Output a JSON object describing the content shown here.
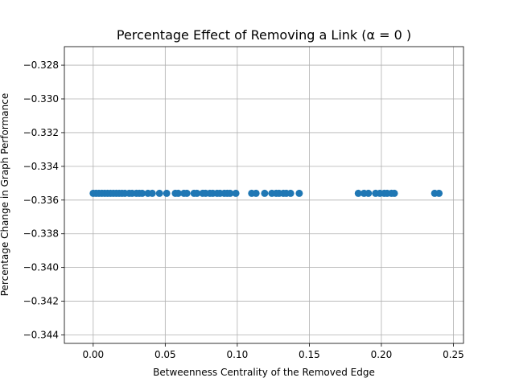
{
  "chart_data": {
    "type": "scatter",
    "title": "Percentage Effect of Removing a Link (α = 0 )",
    "xlabel": "Betweenness Centrality of the Removed Edge",
    "ylabel": "Percentage Change in Graph Performance",
    "xlim": [
      -0.02,
      0.257
    ],
    "ylim": [
      -0.3445,
      -0.3269
    ],
    "xticks": [
      0.0,
      0.05,
      0.1,
      0.15,
      0.2,
      0.25
    ],
    "xtick_labels": [
      "0.00",
      "0.05",
      "0.10",
      "0.15",
      "0.20",
      "0.25"
    ],
    "yticks": [
      -0.328,
      -0.33,
      -0.332,
      -0.334,
      -0.336,
      -0.338,
      -0.34,
      -0.342,
      -0.344
    ],
    "ytick_labels": [
      "−0.328",
      "−0.330",
      "−0.332",
      "−0.334",
      "−0.336",
      "−0.338",
      "−0.340",
      "−0.342",
      "−0.344"
    ],
    "grid": true,
    "marker_color": "#1f77b4",
    "series": [
      {
        "x": [
          0.0,
          0.002,
          0.004,
          0.006,
          0.008,
          0.01,
          0.012,
          0.014,
          0.016,
          0.018,
          0.02,
          0.022,
          0.025,
          0.027,
          0.03,
          0.032,
          0.034,
          0.038,
          0.041,
          0.046,
          0.051,
          0.057,
          0.059,
          0.063,
          0.065,
          0.07,
          0.072,
          0.076,
          0.078,
          0.081,
          0.083,
          0.086,
          0.088,
          0.091,
          0.093,
          0.095,
          0.099,
          0.11,
          0.113,
          0.119,
          0.124,
          0.127,
          0.129,
          0.132,
          0.134,
          0.137,
          0.143,
          0.184,
          0.188,
          0.191,
          0.196,
          0.199,
          0.202,
          0.204,
          0.207,
          0.209,
          0.237,
          0.24
        ],
        "y": [
          -0.3356,
          -0.3356,
          -0.3356,
          -0.3356,
          -0.3356,
          -0.3356,
          -0.3356,
          -0.3356,
          -0.3356,
          -0.3356,
          -0.3356,
          -0.3356,
          -0.3356,
          -0.3356,
          -0.3356,
          -0.3356,
          -0.3356,
          -0.3356,
          -0.3356,
          -0.3356,
          -0.3356,
          -0.3356,
          -0.3356,
          -0.3356,
          -0.3356,
          -0.3356,
          -0.3356,
          -0.3356,
          -0.3356,
          -0.3356,
          -0.3356,
          -0.3356,
          -0.3356,
          -0.3356,
          -0.3356,
          -0.3356,
          -0.3356,
          -0.3356,
          -0.3356,
          -0.3356,
          -0.3356,
          -0.3356,
          -0.3356,
          -0.3356,
          -0.3356,
          -0.3356,
          -0.3356,
          -0.3356,
          -0.3356,
          -0.3356,
          -0.3356,
          -0.3356,
          -0.3356,
          -0.3356,
          -0.3356,
          -0.3356,
          -0.3356,
          -0.3356
        ]
      }
    ]
  }
}
